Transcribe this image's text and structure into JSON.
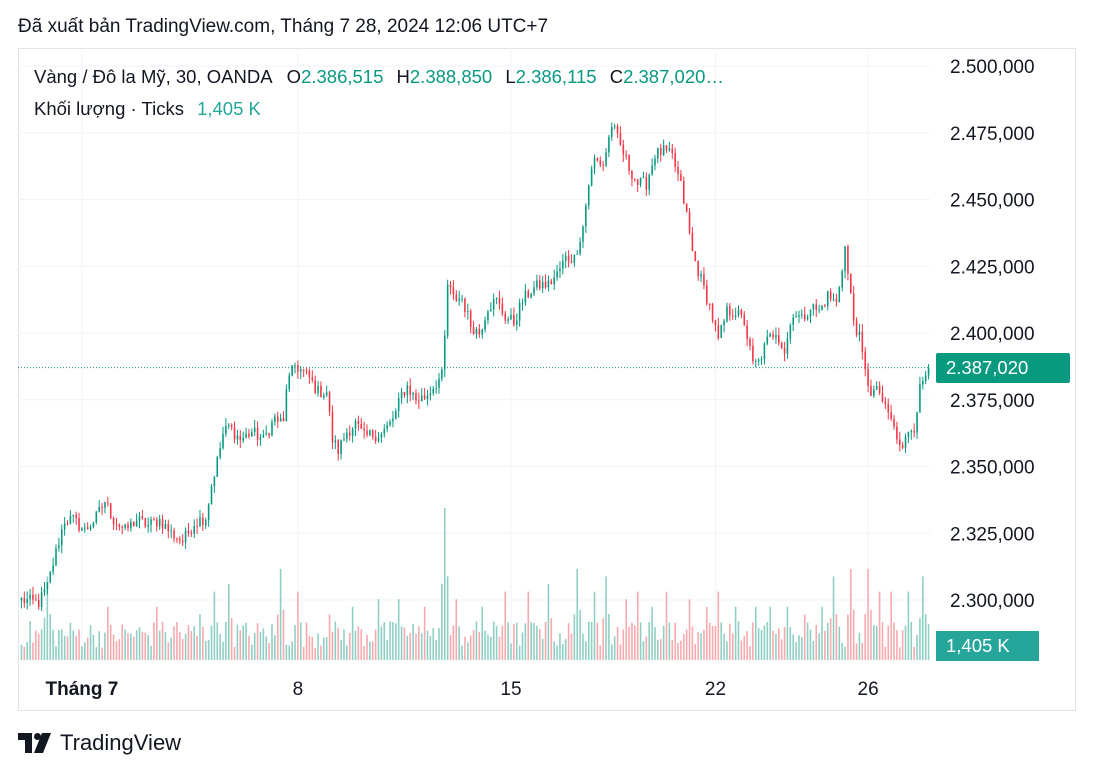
{
  "header": {
    "published": "Đã xuất bản TradingView.com, Tháng 7 28, 2024 12:06 UTC+7"
  },
  "legend": {
    "symbol": "Vàng / Đô la Mỹ, 30, OANDA",
    "open_label": "O",
    "open": "2.386,515",
    "high_label": "H",
    "high": "2.388,850",
    "low_label": "L",
    "low": "2.386,115",
    "close_label": "C",
    "close": "2.387,020…",
    "volume_label": "Khối lượng · Ticks",
    "volume": "1,405 K"
  },
  "price_badge": {
    "text": "2.387,020",
    "color": "#089981"
  },
  "volume_badge": {
    "text": "1,405 K",
    "color": "#26a69a"
  },
  "brand": {
    "name": "TradingView"
  },
  "colors": {
    "up": "#089981",
    "down": "#f23645",
    "vol_up": "#8fcfc3",
    "vol_down": "#f7a9ae",
    "grid": "#f0f3fa"
  },
  "chart_data": {
    "type": "candlestick",
    "title": "Vàng / Đô la Mỹ, 30, OANDA",
    "y_ticks": [
      "2.500,000",
      "2.475,000",
      "2.450,000",
      "2.425,000",
      "2.400,000",
      "2.375,000",
      "2.350,000",
      "2.325,000",
      "2.300,000"
    ],
    "y_tick_values": [
      2500,
      2475,
      2450,
      2425,
      2400,
      2375,
      2350,
      2325,
      2300
    ],
    "ylim": [
      2272,
      2503
    ],
    "x_ticks": [
      "Tháng 7",
      "8",
      "15",
      "22",
      "26"
    ],
    "x_tick_index": [
      21,
      96,
      170,
      241,
      294
    ],
    "n_bars": 316,
    "last_price": 2387.02,
    "anchor_closes": [
      [
        0,
        2300
      ],
      [
        6,
        2299
      ],
      [
        9,
        2305
      ],
      [
        12,
        2318
      ],
      [
        15,
        2330
      ],
      [
        18,
        2330
      ],
      [
        22,
        2326
      ],
      [
        26,
        2331
      ],
      [
        29,
        2337
      ],
      [
        32,
        2330
      ],
      [
        36,
        2326
      ],
      [
        40,
        2330
      ],
      [
        44,
        2328
      ],
      [
        48,
        2330
      ],
      [
        52,
        2325
      ],
      [
        56,
        2322
      ],
      [
        60,
        2329
      ],
      [
        64,
        2331
      ],
      [
        66,
        2343
      ],
      [
        68,
        2352
      ],
      [
        70,
        2362
      ],
      [
        72,
        2365
      ],
      [
        76,
        2360
      ],
      [
        80,
        2363
      ],
      [
        84,
        2360
      ],
      [
        88,
        2368
      ],
      [
        91,
        2366
      ],
      [
        92,
        2380
      ],
      [
        95,
        2388
      ],
      [
        98,
        2385
      ],
      [
        100,
        2383
      ],
      [
        103,
        2378
      ],
      [
        106,
        2378
      ],
      [
        108,
        2360
      ],
      [
        110,
        2356
      ],
      [
        113,
        2363
      ],
      [
        116,
        2366
      ],
      [
        119,
        2361
      ],
      [
        122,
        2362
      ],
      [
        125,
        2362
      ],
      [
        128,
        2366
      ],
      [
        130,
        2370
      ],
      [
        132,
        2377
      ],
      [
        134,
        2380
      ],
      [
        137,
        2375
      ],
      [
        140,
        2376
      ],
      [
        143,
        2380
      ],
      [
        146,
        2384
      ],
      [
        147,
        2398
      ],
      [
        148,
        2418
      ],
      [
        150,
        2413
      ],
      [
        153,
        2413
      ],
      [
        156,
        2403
      ],
      [
        159,
        2400
      ],
      [
        162,
        2410
      ],
      [
        165,
        2412
      ],
      [
        168,
        2406
      ],
      [
        171,
        2404
      ],
      [
        174,
        2412
      ],
      [
        177,
        2416
      ],
      [
        180,
        2418
      ],
      [
        183,
        2418
      ],
      [
        186,
        2422
      ],
      [
        189,
        2428
      ],
      [
        192,
        2428
      ],
      [
        195,
        2440
      ],
      [
        197,
        2456
      ],
      [
        199,
        2465
      ],
      [
        202,
        2463
      ],
      [
        205,
        2478
      ],
      [
        208,
        2470
      ],
      [
        211,
        2462
      ],
      [
        214,
        2456
      ],
      [
        217,
        2456
      ],
      [
        220,
        2467
      ],
      [
        223,
        2468
      ],
      [
        226,
        2466
      ],
      [
        229,
        2455
      ],
      [
        231,
        2444
      ],
      [
        233,
        2430
      ],
      [
        236,
        2420
      ],
      [
        239,
        2410
      ],
      [
        242,
        2397
      ],
      [
        245,
        2408
      ],
      [
        248,
        2408
      ],
      [
        251,
        2404
      ],
      [
        254,
        2388
      ],
      [
        256,
        2389
      ],
      [
        259,
        2397
      ],
      [
        262,
        2401
      ],
      [
        265,
        2393
      ],
      [
        268,
        2408
      ],
      [
        271,
        2405
      ],
      [
        274,
        2410
      ],
      [
        277,
        2408
      ],
      [
        280,
        2414
      ],
      [
        283,
        2411
      ],
      [
        286,
        2432
      ],
      [
        287,
        2422
      ],
      [
        289,
        2405
      ],
      [
        291,
        2398
      ],
      [
        293,
        2385
      ],
      [
        295,
        2378
      ],
      [
        298,
        2378
      ],
      [
        300,
        2371
      ],
      [
        302,
        2368
      ],
      [
        304,
        2360
      ],
      [
        306,
        2356
      ],
      [
        308,
        2364
      ],
      [
        310,
        2365
      ],
      [
        312,
        2379
      ],
      [
        314,
        2385
      ],
      [
        316,
        2387
      ]
    ],
    "volume_spikes": [
      [
        9,
        0.55
      ],
      [
        30,
        0.35
      ],
      [
        47,
        0.35
      ],
      [
        54,
        0.25
      ],
      [
        62,
        0.3
      ],
      [
        67,
        0.45
      ],
      [
        72,
        0.5
      ],
      [
        90,
        0.6
      ],
      [
        96,
        0.45
      ],
      [
        107,
        0.3
      ],
      [
        115,
        0.35
      ],
      [
        124,
        0.4
      ],
      [
        131,
        0.4
      ],
      [
        140,
        0.35
      ],
      [
        147,
        1.0
      ],
      [
        151,
        0.4
      ],
      [
        160,
        0.35
      ],
      [
        168,
        0.45
      ],
      [
        176,
        0.45
      ],
      [
        183,
        0.5
      ],
      [
        193,
        0.6
      ],
      [
        199,
        0.45
      ],
      [
        203,
        0.55
      ],
      [
        210,
        0.4
      ],
      [
        214,
        0.45
      ],
      [
        219,
        0.35
      ],
      [
        224,
        0.45
      ],
      [
        232,
        0.4
      ],
      [
        238,
        0.35
      ],
      [
        242,
        0.45
      ],
      [
        248,
        0.35
      ],
      [
        255,
        0.35
      ],
      [
        260,
        0.35
      ],
      [
        266,
        0.35
      ],
      [
        272,
        0.3
      ],
      [
        278,
        0.35
      ],
      [
        282,
        0.55
      ],
      [
        288,
        0.6
      ],
      [
        294,
        0.6
      ],
      [
        298,
        0.45
      ],
      [
        302,
        0.45
      ],
      [
        308,
        0.45
      ],
      [
        313,
        0.55
      ]
    ]
  }
}
